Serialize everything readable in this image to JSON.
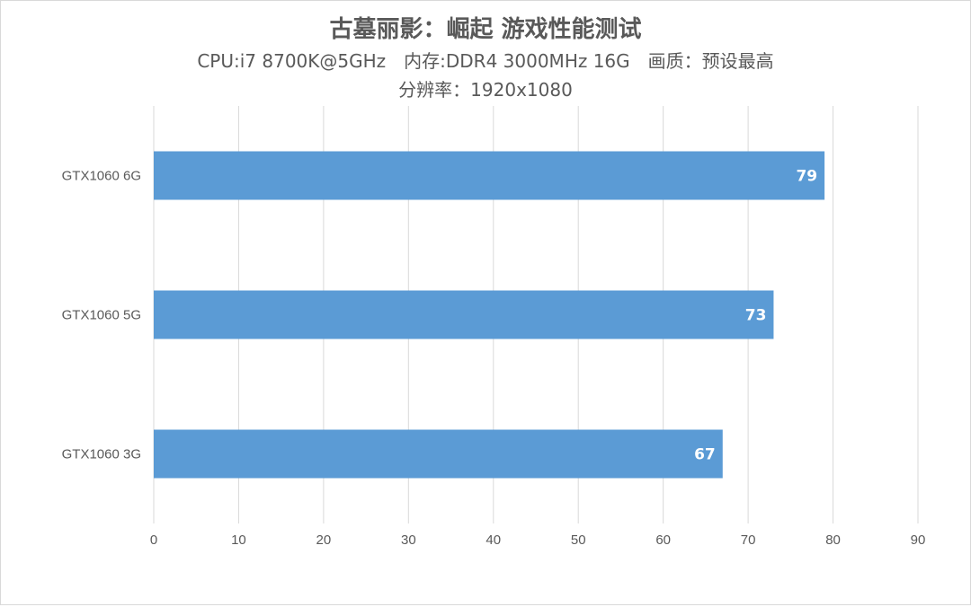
{
  "chart_data": {
    "type": "bar",
    "orientation": "horizontal",
    "title": "古墓丽影：崛起 游戏性能测试",
    "subtitle_lines": [
      "CPU:i7 8700K@5GHz　内存:DDR4 3000MHz 16G　画质：预设最高",
      "分辨率：1920x1080"
    ],
    "categories": [
      "GTX1060 6G",
      "GTX1060 5G",
      "GTX1060 3G"
    ],
    "values": [
      79,
      73,
      67
    ],
    "xlim": [
      0,
      90
    ],
    "xticks": [
      0,
      10,
      20,
      30,
      40,
      50,
      60,
      70,
      80,
      90
    ],
    "grid": true,
    "bar_color": "#5b9bd5",
    "xlabel": "",
    "ylabel": ""
  }
}
